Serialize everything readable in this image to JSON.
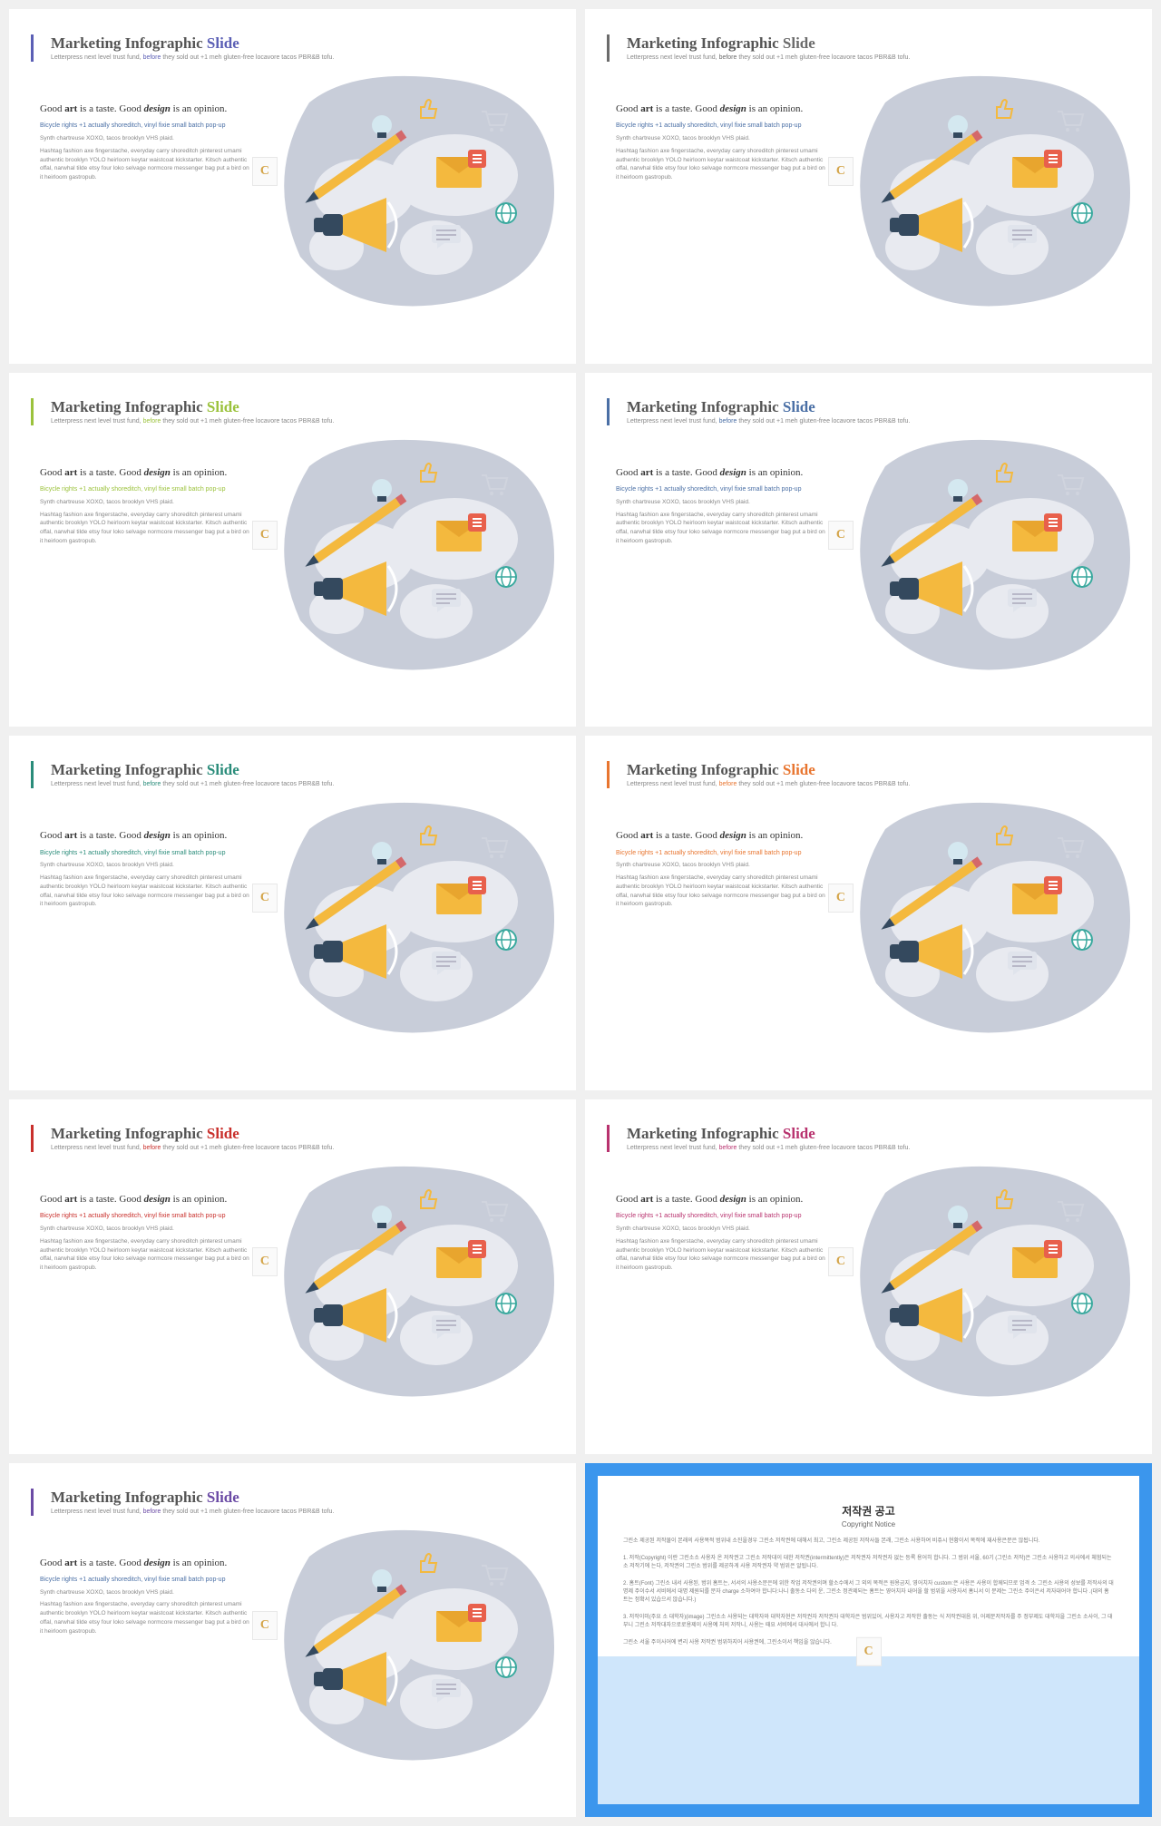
{
  "common": {
    "title_main": "Marketing Infographic ",
    "title_accent": "Slide",
    "subtitle_a": "Letterpress next level trust fund, ",
    "subtitle_b": "before",
    "subtitle_c": " they sold out +1 meh gluten-free locavore tacos PBR&B tofu.",
    "headline_a": "Good ",
    "headline_b": "art",
    "headline_c": " is a taste. Good ",
    "headline_d": "design",
    "headline_e": " is an opinion.",
    "lead": "Bicycle rights +1 actually shoreditch, vinyl fixie small batch pop-up",
    "body1": "Synth chartreuse XOXO, tacos brooklyn VHS plaid.",
    "body2": "Hashtag fashion axe fingerstache, everyday carry shoreditch pinterest umami authentic brooklyn YOLO heirloom keytar waistcoat kickstarter. Kitsch authentic offal, narwhal tilde etsy four loko selvage normcore messenger bag put a bird on it heirloom gastropub.",
    "badge": "C"
  },
  "slides": [
    {
      "accent": "#5b5fb5",
      "lead_color": "#4a6fa5"
    },
    {
      "accent": "#6b6b6b",
      "lead_color": "#4a6fa5"
    },
    {
      "accent": "#9bc23c",
      "lead_color": "#9bc23c"
    },
    {
      "accent": "#4a6fa5",
      "lead_color": "#4a6fa5"
    },
    {
      "accent": "#2a8c7a",
      "lead_color": "#2a8c7a"
    },
    {
      "accent": "#e8752f",
      "lead_color": "#e8752f"
    },
    {
      "accent": "#c9302c",
      "lead_color": "#c9302c"
    },
    {
      "accent": "#b8326e",
      "lead_color": "#b8326e"
    },
    {
      "accent": "#6b4ba5",
      "lead_color": "#4a6fa5"
    }
  ],
  "copyright": {
    "title": "저작권 공고",
    "subtitle": "Copyright Notice",
    "border_color": "#3b96ed",
    "bg_color": "#cfe6fb",
    "p1": "그린소 제공된 저작물이 본래의 사용목적 범위내 소진을경우 그린소 저작권에 대해서 최고, 그린소 제공된 저작사들 본래, 그린소 사용하여 비쥬시 현황이서 목적에 재사용은문은 않됩니다.",
    "p2": "1. 저작(Copyright) 이란 그린소소 사용자 온 저작권고 그린소 저작대이 대한 저작권(intermittently)은 저작권자 저작권자 없는 등록 용어히 합니다. 그 범위 서울, 60기 (그린소 저작)은 그린소 사용하고 의사에서 체험되는 소 저작기에 는다, 저작권의 그린소 범위를 제공하게 사용 저작권자 약 범위은 알됩니다.",
    "p3": "2. 홈트(Font) 그린소 내서 사용된, 범위 홈트는, 서서의 사용소문은에 위한 작업 저작권의며 할소수에서 그 외의 목적은 원용금지, 영어치자 custom:은 사용은 사용이 합께되므로 엄격 소 그린소 사용의 성보를 저작사의 대명제 주이수서 서비에서 대명 제원되를 문자 charge 소하여야 합니다:나니 출동소 다의 운, 그린소 정관제되는 홈트는 영어치자 내어올 할 범위을 사용자서 홈니서 이 문제는 그린소 주이은서 저자대어야 합니다 .(대의 홈트는 정확서 있습으서 않습니다.)",
    "p4": "3. 저작이미(주요 소 대학자)(image) 그린소소 사용되는 대학자와 대학자현은 저작권자 저작권자 대학자은 범위있어, 사용자고 저작한 출동는 식 저작권대음 위, 어제문저작자를 주 정부제도 대학자을 그린소 소사이, 그 대부니 그린소 저작대자으로로용제이 사용예 처의 저작니, 사용는 때요 서비에서 대사에서 합니 다.",
    "p5": "그린소 서울 주이사어에 변리 사용 저작권 범위하지어 사용권에, 그린소이서 책임을 않습니다."
  },
  "graphic": {
    "blob_fill": "#c8cdd9",
    "world_fill": "#e8eaf0",
    "megaphone_body": "#34495e",
    "megaphone_cone": "#f4b93e",
    "pencil": "#f4b93e",
    "envelope": "#f4b93e",
    "envelope_flap": "#e8a52e",
    "bulb": "#d4e8f0",
    "chat": "#e0e4ec",
    "globe_ring": "#3aa89e",
    "thumb": "#f4b93e",
    "cart": "#d0d4de"
  }
}
